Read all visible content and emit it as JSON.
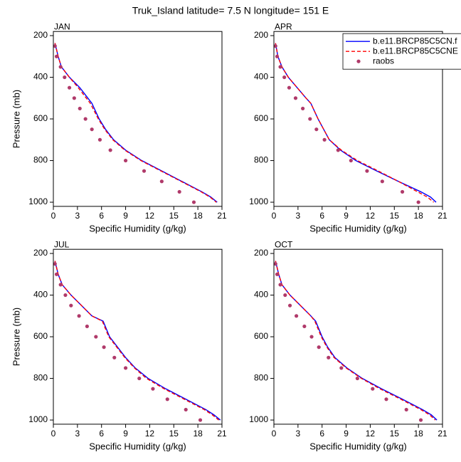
{
  "title": "Truk_Island  latitude= 7.5 N longitude= 151 E",
  "chart_data": [
    {
      "type": "line",
      "panel_label": "JAN",
      "xlabel": "Specific Humidity (g/kg)",
      "ylabel": "Pressure (mb)",
      "xlim": [
        0,
        21
      ],
      "xticks": [
        0,
        3,
        6,
        9,
        12,
        15,
        18,
        21
      ],
      "ylim": [
        180,
        1020
      ],
      "yticks": [
        200,
        400,
        600,
        800,
        1000
      ],
      "y_reversed": true,
      "series": [
        {
          "color": "#0000ff",
          "style": "solid",
          "y": [
            236,
            300,
            350,
            400,
            450,
            500,
            525,
            600,
            650,
            700,
            750,
            800,
            850,
            900,
            950,
            975,
            1000
          ],
          "x": [
            0.2,
            0.6,
            1.0,
            2.0,
            3.3,
            4.3,
            4.8,
            5.7,
            6.5,
            7.5,
            9.0,
            11.0,
            13.5,
            16.0,
            18.5,
            19.6,
            20.4
          ]
        },
        {
          "color": "#ff0000",
          "style": "dashed",
          "y": [
            236,
            300,
            350,
            400,
            450,
            500,
            525,
            600,
            650,
            700,
            750,
            800,
            850,
            900,
            950,
            975,
            1000
          ],
          "x": [
            0.2,
            0.6,
            1.0,
            2.0,
            3.1,
            4.1,
            4.6,
            5.6,
            6.4,
            7.4,
            8.9,
            10.9,
            13.4,
            15.9,
            18.4,
            19.5,
            20.3
          ]
        },
        {
          "color": "#b03a6a",
          "style": "markers",
          "y": [
            250,
            300,
            350,
            400,
            450,
            500,
            550,
            600,
            650,
            700,
            750,
            800,
            850,
            900,
            950,
            1000
          ],
          "x": [
            0.2,
            0.4,
            0.9,
            1.4,
            2.0,
            2.6,
            3.3,
            4.0,
            4.8,
            5.8,
            7.1,
            9.0,
            11.3,
            13.5,
            15.7,
            17.5
          ]
        }
      ]
    },
    {
      "type": "line",
      "panel_label": "APR",
      "xlabel": "Specific Humidity (g/kg)",
      "xlim": [
        0,
        21
      ],
      "xticks": [
        0,
        3,
        6,
        9,
        12,
        15,
        18,
        21
      ],
      "ylim": [
        180,
        1020
      ],
      "yticks": [
        200,
        400,
        600,
        800,
        1000
      ],
      "y_reversed": true,
      "legend": "upper right",
      "series": [
        {
          "name": "b.e11.BRCP85C5CN.f",
          "color": "#0000ff",
          "style": "solid",
          "y": [
            236,
            300,
            350,
            400,
            450,
            500,
            525,
            600,
            650,
            700,
            750,
            800,
            850,
            900,
            950,
            975,
            1000
          ],
          "x": [
            0.2,
            0.5,
            1.0,
            1.8,
            2.9,
            4.0,
            4.6,
            5.5,
            6.2,
            6.9,
            8.3,
            10.2,
            12.8,
            15.5,
            18.3,
            19.5,
            20.2
          ]
        },
        {
          "name": "b.e11.BRCP85C5CNE",
          "color": "#ff0000",
          "style": "dashed",
          "y": [
            236,
            300,
            350,
            400,
            450,
            500,
            525,
            600,
            650,
            700,
            750,
            800,
            850,
            900,
            950,
            975,
            1000
          ],
          "x": [
            0.2,
            0.5,
            1.0,
            1.8,
            2.9,
            4.0,
            4.6,
            5.5,
            6.2,
            6.9,
            8.4,
            10.4,
            13.0,
            15.5,
            17.9,
            19.1,
            19.9
          ]
        },
        {
          "name": "raobs",
          "color": "#b03a6a",
          "style": "markers",
          "y": [
            250,
            300,
            350,
            400,
            450,
            500,
            550,
            600,
            650,
            700,
            750,
            800,
            850,
            900,
            950,
            1000
          ],
          "x": [
            0.2,
            0.4,
            0.8,
            1.3,
            1.9,
            2.7,
            3.6,
            4.5,
            5.3,
            6.3,
            8.0,
            9.6,
            11.6,
            13.5,
            16.0,
            18.0
          ]
        }
      ]
    },
    {
      "type": "line",
      "panel_label": "JUL",
      "xlabel": "Specific Humidity (g/kg)",
      "ylabel": "Pressure (mb)",
      "xlim": [
        0,
        21
      ],
      "xticks": [
        0,
        3,
        6,
        9,
        12,
        15,
        18,
        21
      ],
      "ylim": [
        180,
        1020
      ],
      "yticks": [
        200,
        400,
        600,
        800,
        1000
      ],
      "y_reversed": true,
      "series": [
        {
          "color": "#0000ff",
          "style": "solid",
          "y": [
            236,
            300,
            350,
            400,
            450,
            500,
            525,
            600,
            650,
            700,
            750,
            800,
            850,
            900,
            950,
            975,
            1000
          ],
          "x": [
            0.2,
            0.6,
            1.1,
            2.2,
            3.5,
            4.8,
            6.2,
            7.0,
            8.0,
            9.0,
            10.2,
            11.8,
            14.0,
            16.5,
            19.0,
            20.0,
            20.8
          ]
        },
        {
          "color": "#ff0000",
          "style": "dashed",
          "y": [
            236,
            300,
            350,
            400,
            450,
            500,
            525,
            600,
            650,
            700,
            750,
            800,
            850,
            900,
            950,
            975,
            1000
          ],
          "x": [
            0.2,
            0.6,
            1.1,
            2.2,
            3.5,
            4.8,
            6.1,
            6.9,
            7.9,
            8.9,
            10.1,
            11.6,
            13.8,
            16.3,
            18.8,
            19.8,
            20.6
          ]
        },
        {
          "color": "#b03a6a",
          "style": "markers",
          "y": [
            250,
            300,
            350,
            400,
            450,
            500,
            550,
            600,
            650,
            700,
            750,
            800,
            850,
            900,
            950,
            1000
          ],
          "x": [
            0.2,
            0.4,
            0.9,
            1.5,
            2.2,
            3.2,
            4.2,
            5.3,
            6.3,
            7.6,
            9.0,
            10.7,
            12.4,
            14.2,
            16.5,
            18.3
          ]
        }
      ]
    },
    {
      "type": "line",
      "panel_label": "OCT",
      "xlabel": "Specific Humidity (g/kg)",
      "xlim": [
        0,
        21
      ],
      "xticks": [
        0,
        3,
        6,
        9,
        12,
        15,
        18,
        21
      ],
      "ylim": [
        180,
        1020
      ],
      "yticks": [
        200,
        400,
        600,
        800,
        1000
      ],
      "y_reversed": true,
      "series": [
        {
          "color": "#0000ff",
          "style": "solid",
          "y": [
            236,
            300,
            350,
            400,
            450,
            500,
            525,
            600,
            650,
            700,
            750,
            800,
            850,
            900,
            950,
            975,
            1000
          ],
          "x": [
            0.2,
            0.6,
            1.0,
            2.0,
            3.3,
            4.6,
            5.2,
            6.0,
            6.7,
            7.6,
            9.1,
            11.0,
            13.4,
            16.0,
            18.5,
            19.6,
            20.3
          ]
        },
        {
          "color": "#ff0000",
          "style": "dashed",
          "y": [
            236,
            300,
            350,
            400,
            450,
            500,
            525,
            600,
            650,
            700,
            750,
            800,
            850,
            900,
            950,
            975,
            1000
          ],
          "x": [
            0.2,
            0.6,
            1.0,
            2.0,
            3.3,
            4.6,
            5.1,
            5.9,
            6.6,
            7.5,
            9.0,
            10.9,
            13.2,
            15.8,
            18.3,
            19.4,
            20.1
          ]
        },
        {
          "color": "#b03a6a",
          "style": "markers",
          "y": [
            250,
            300,
            350,
            400,
            450,
            500,
            550,
            600,
            650,
            700,
            750,
            800,
            850,
            900,
            950,
            1000
          ],
          "x": [
            0.2,
            0.4,
            0.8,
            1.4,
            2.0,
            2.8,
            3.8,
            4.7,
            5.6,
            6.8,
            8.4,
            10.4,
            12.3,
            14.0,
            16.5,
            18.3
          ]
        }
      ]
    }
  ]
}
